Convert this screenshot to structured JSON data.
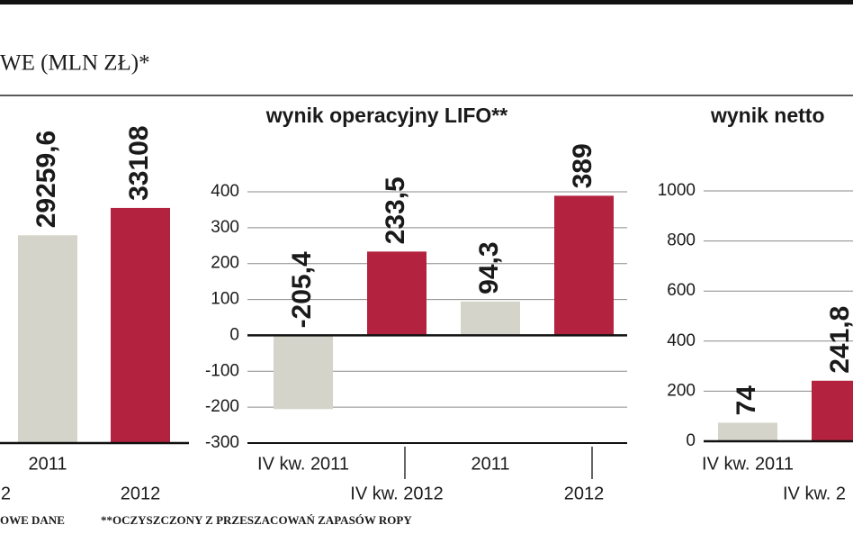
{
  "heading": "WE (MLN ZŁ)*",
  "chart_data": [
    {
      "type": "bar",
      "categories": [
        "2",
        "2011",
        "2012"
      ],
      "values": [
        null,
        29259.6,
        33108
      ],
      "value_labels": [
        null,
        "29259,6",
        "33108"
      ],
      "colors": [
        "#d5d4ca",
        "#d5d4ca",
        "#b3223e"
      ],
      "ylim": [
        0,
        35000
      ]
    },
    {
      "type": "bar",
      "title": "wynik operacyjny LIFO**",
      "categories": [
        "IV kw. 2011",
        "IV kw. 2012",
        "2011",
        "2012"
      ],
      "values": [
        -205.4,
        233.5,
        94.3,
        389
      ],
      "value_labels": [
        "-205,4",
        "233,5",
        "94,3",
        "389"
      ],
      "colors": [
        "#d5d4ca",
        "#b3223e",
        "#d5d4ca",
        "#b3223e"
      ],
      "ylim": [
        -300,
        400
      ],
      "yticks": [
        -300,
        -200,
        -100,
        0,
        100,
        200,
        300,
        400
      ],
      "grid": true
    },
    {
      "type": "bar",
      "title": "wynik netto",
      "categories": [
        "IV kw. 2011",
        "IV kw. 2"
      ],
      "values": [
        74,
        241.8
      ],
      "value_labels": [
        "74",
        "241,8"
      ],
      "colors": [
        "#d5d4ca",
        "#b3223e"
      ],
      "ylim": [
        0,
        1000
      ],
      "yticks": [
        0,
        200,
        400,
        600,
        800,
        1000
      ],
      "grid": true
    }
  ],
  "footnotes": [
    "OWE DANE",
    "**OCZYSZCZONY Z PRZESZACOWAŃ ZAPASÓW ROPY"
  ]
}
